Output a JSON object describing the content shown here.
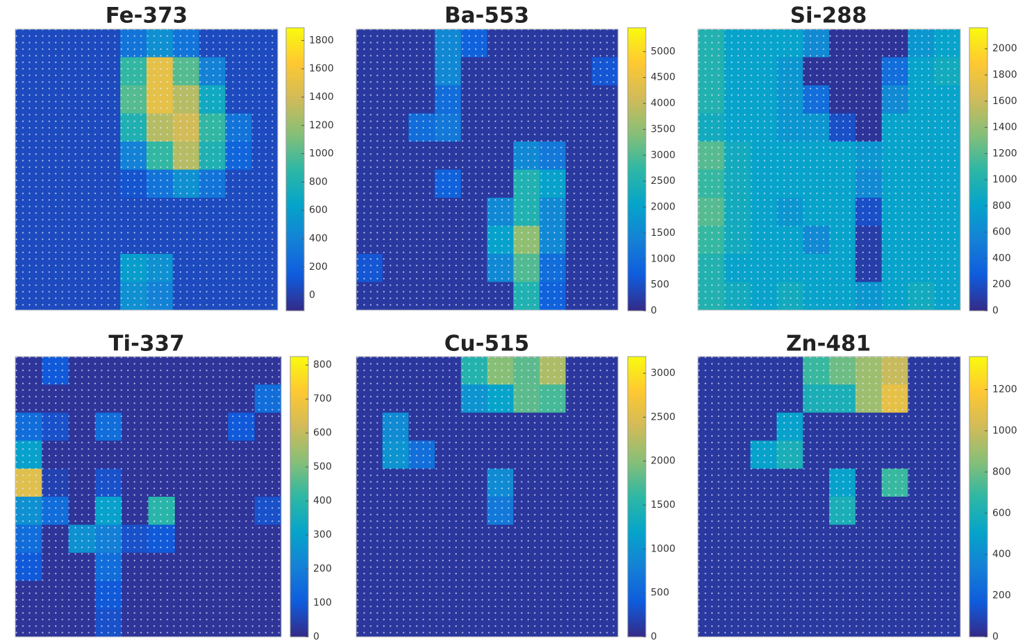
{
  "chart_data": [
    {
      "type": "heatmap",
      "title": "Fe-373",
      "clim": [
        -110,
        1890
      ],
      "cticks": [
        0,
        200,
        400,
        600,
        800,
        1000,
        1200,
        1400,
        1600,
        1800
      ],
      "colormap": [
        "#352a87",
        "#0f5cdd",
        "#1481d6",
        "#06a4ca",
        "#2eb7a4",
        "#87bf77",
        "#d1bb59",
        "#fec832",
        "#f9fb0e"
      ],
      "values": [
        [
          50,
          50,
          50,
          50,
          300,
          500,
          300,
          50,
          50,
          50
        ],
        [
          50,
          50,
          50,
          50,
          900,
          1500,
          1000,
          400,
          50,
          50
        ],
        [
          50,
          50,
          50,
          50,
          1000,
          1500,
          1300,
          700,
          50,
          50
        ],
        [
          50,
          50,
          50,
          50,
          800,
          1300,
          1400,
          900,
          300,
          50
        ],
        [
          50,
          50,
          50,
          50,
          400,
          900,
          1300,
          800,
          200,
          50
        ],
        [
          50,
          50,
          50,
          50,
          100,
          300,
          500,
          300,
          50,
          50
        ],
        [
          50,
          50,
          50,
          50,
          50,
          50,
          50,
          50,
          50,
          50
        ],
        [
          50,
          50,
          50,
          50,
          50,
          50,
          50,
          50,
          50,
          50
        ],
        [
          50,
          50,
          50,
          50,
          600,
          500,
          50,
          50,
          50,
          50
        ],
        [
          50,
          50,
          50,
          50,
          500,
          400,
          50,
          50,
          50,
          50
        ]
      ]
    },
    {
      "type": "heatmap",
      "title": "Ba-553",
      "clim": [
        0,
        5460
      ],
      "cticks": [
        0,
        500,
        1000,
        1500,
        2000,
        2500,
        3000,
        3500,
        4000,
        4500,
        5000
      ],
      "colormap": [
        "#352a87",
        "#0f5cdd",
        "#1481d6",
        "#06a4ca",
        "#2eb7a4",
        "#87bf77",
        "#d1bb59",
        "#fec832",
        "#f9fb0e"
      ],
      "values": [
        [
          200,
          200,
          200,
          1500,
          800,
          200,
          200,
          200,
          200,
          200
        ],
        [
          200,
          200,
          200,
          1500,
          200,
          200,
          200,
          200,
          200,
          600
        ],
        [
          200,
          200,
          200,
          1000,
          200,
          200,
          200,
          200,
          200,
          200
        ],
        [
          200,
          200,
          1000,
          1200,
          200,
          200,
          200,
          200,
          200,
          200
        ],
        [
          200,
          200,
          200,
          200,
          200,
          200,
          1500,
          1200,
          200,
          200
        ],
        [
          200,
          200,
          200,
          800,
          200,
          200,
          2500,
          2000,
          200,
          200
        ],
        [
          200,
          200,
          200,
          200,
          200,
          1500,
          2500,
          1500,
          200,
          200
        ],
        [
          200,
          200,
          200,
          200,
          200,
          2000,
          3500,
          1500,
          200,
          200
        ],
        [
          600,
          200,
          200,
          200,
          200,
          1500,
          3000,
          1000,
          200,
          200
        ],
        [
          200,
          200,
          200,
          200,
          200,
          200,
          2500,
          800,
          200,
          200
        ]
      ]
    },
    {
      "type": "heatmap",
      "title": "Si-288",
      "clim": [
        0,
        2160
      ],
      "cticks": [
        0,
        200,
        400,
        600,
        800,
        1000,
        1200,
        1400,
        1600,
        1800,
        2000
      ],
      "colormap": [
        "#352a87",
        "#0f5cdd",
        "#1481d6",
        "#06a4ca",
        "#2eb7a4",
        "#87bf77",
        "#d1bb59",
        "#fec832",
        "#f9fb0e"
      ],
      "values": [
        [
          1000,
          800,
          800,
          800,
          600,
          50,
          50,
          50,
          700,
          800
        ],
        [
          1000,
          800,
          800,
          700,
          50,
          50,
          50,
          400,
          800,
          900
        ],
        [
          1000,
          800,
          800,
          700,
          400,
          50,
          50,
          600,
          800,
          800
        ],
        [
          900,
          800,
          800,
          700,
          700,
          200,
          50,
          800,
          800,
          800
        ],
        [
          1200,
          900,
          800,
          800,
          800,
          800,
          700,
          800,
          800,
          800
        ],
        [
          1100,
          900,
          800,
          800,
          800,
          800,
          600,
          800,
          800,
          800
        ],
        [
          1200,
          900,
          800,
          700,
          800,
          800,
          200,
          800,
          800,
          800
        ],
        [
          1100,
          900,
          800,
          800,
          600,
          800,
          100,
          800,
          800,
          800
        ],
        [
          1000,
          800,
          800,
          800,
          800,
          800,
          100,
          800,
          800,
          800
        ],
        [
          1000,
          900,
          800,
          900,
          800,
          800,
          700,
          800,
          900,
          800
        ]
      ]
    },
    {
      "type": "heatmap",
      "title": "Ti-337",
      "clim": [
        0,
        825
      ],
      "cticks": [
        0,
        100,
        200,
        300,
        400,
        500,
        600,
        700,
        800
      ],
      "colormap": [
        "#352a87",
        "#0f5cdd",
        "#1481d6",
        "#06a4ca",
        "#2eb7a4",
        "#87bf77",
        "#d1bb59",
        "#fec832",
        "#f9fb0e"
      ],
      "values": [
        [
          20,
          100,
          20,
          20,
          20,
          20,
          20,
          20,
          20,
          20
        ],
        [
          20,
          20,
          20,
          20,
          20,
          20,
          20,
          20,
          20,
          150
        ],
        [
          150,
          80,
          20,
          150,
          20,
          20,
          20,
          20,
          100,
          20
        ],
        [
          300,
          20,
          20,
          20,
          20,
          20,
          20,
          20,
          20,
          20
        ],
        [
          650,
          50,
          20,
          80,
          20,
          20,
          20,
          20,
          20,
          20
        ],
        [
          250,
          150,
          20,
          300,
          20,
          400,
          20,
          20,
          20,
          80
        ],
        [
          150,
          20,
          250,
          200,
          80,
          100,
          20,
          20,
          20,
          20
        ],
        [
          100,
          20,
          20,
          150,
          20,
          20,
          20,
          20,
          20,
          20
        ],
        [
          20,
          20,
          20,
          100,
          20,
          20,
          20,
          20,
          20,
          20
        ],
        [
          20,
          20,
          20,
          80,
          20,
          20,
          20,
          20,
          20,
          20
        ]
      ]
    },
    {
      "type": "heatmap",
      "title": "Cu-515",
      "clim": [
        0,
        3190
      ],
      "cticks": [
        0,
        500,
        1000,
        1500,
        2000,
        2500,
        3000
      ],
      "colormap": [
        "#352a87",
        "#0f5cdd",
        "#1481d6",
        "#06a4ca",
        "#2eb7a4",
        "#87bf77",
        "#d1bb59",
        "#fec832",
        "#f9fb0e"
      ],
      "values": [
        [
          100,
          100,
          100,
          100,
          1500,
          2000,
          1800,
          2200,
          100,
          100
        ],
        [
          100,
          100,
          100,
          100,
          1000,
          1200,
          1800,
          1700,
          100,
          100
        ],
        [
          100,
          900,
          100,
          100,
          100,
          100,
          100,
          100,
          100,
          100
        ],
        [
          100,
          1000,
          600,
          100,
          100,
          100,
          100,
          100,
          100,
          100
        ],
        [
          100,
          100,
          100,
          100,
          100,
          900,
          100,
          100,
          100,
          100
        ],
        [
          100,
          100,
          100,
          100,
          100,
          700,
          100,
          100,
          100,
          100
        ],
        [
          100,
          100,
          100,
          100,
          100,
          100,
          100,
          100,
          100,
          100
        ],
        [
          100,
          100,
          100,
          100,
          100,
          100,
          100,
          100,
          100,
          100
        ],
        [
          100,
          100,
          100,
          100,
          100,
          100,
          100,
          100,
          100,
          100
        ],
        [
          100,
          100,
          100,
          100,
          100,
          100,
          100,
          100,
          100,
          100
        ]
      ]
    },
    {
      "type": "heatmap",
      "title": "Zn-481",
      "clim": [
        0,
        1360
      ],
      "cticks": [
        0,
        200,
        400,
        600,
        800,
        1000,
        1200
      ],
      "colormap": [
        "#352a87",
        "#0f5cdd",
        "#1481d6",
        "#06a4ca",
        "#2eb7a4",
        "#87bf77",
        "#d1bb59",
        "#fec832",
        "#f9fb0e"
      ],
      "values": [
        [
          50,
          50,
          50,
          50,
          700,
          800,
          900,
          1000,
          50,
          50
        ],
        [
          50,
          50,
          50,
          50,
          600,
          600,
          900,
          1100,
          50,
          50
        ],
        [
          50,
          50,
          50,
          500,
          50,
          50,
          50,
          50,
          50,
          50
        ],
        [
          50,
          50,
          500,
          600,
          50,
          50,
          50,
          50,
          50,
          50
        ],
        [
          50,
          50,
          50,
          50,
          50,
          500,
          50,
          700,
          50,
          50
        ],
        [
          50,
          50,
          50,
          50,
          50,
          600,
          50,
          50,
          50,
          50
        ],
        [
          50,
          50,
          50,
          50,
          50,
          50,
          50,
          50,
          50,
          50
        ],
        [
          50,
          50,
          50,
          50,
          50,
          50,
          50,
          50,
          50,
          50
        ],
        [
          50,
          50,
          50,
          50,
          50,
          50,
          50,
          50,
          50,
          50
        ],
        [
          50,
          50,
          50,
          50,
          50,
          50,
          50,
          50,
          50,
          50
        ]
      ]
    }
  ]
}
